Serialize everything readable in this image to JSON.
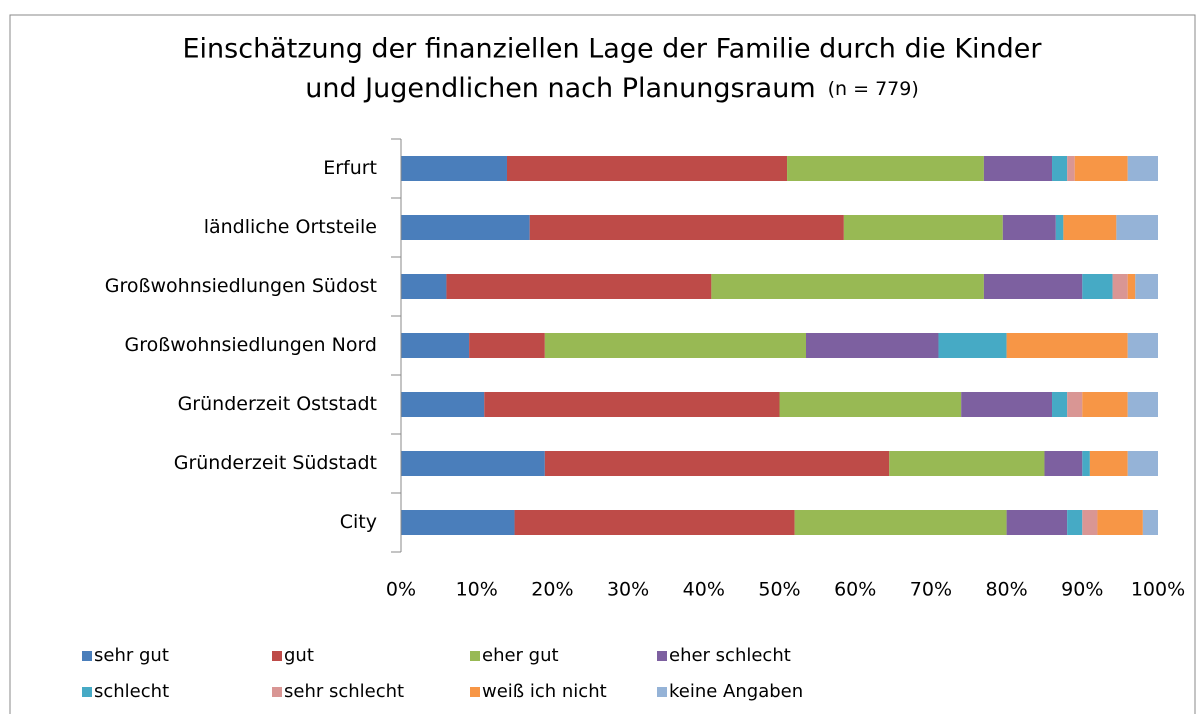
{
  "chart_data": {
    "type": "stacked_bar_horizontal",
    "title": [
      "Einschätzung der finanziellen Lage der Familie durch die Kinder",
      "und Jugendlichen nach Planungsraum"
    ],
    "subtitle": "(n = 779)",
    "categories": [
      "Erfurt",
      "ländliche Ortsteile",
      "Großwohnsiedlungen Südost",
      "Großwohnsiedlungen Nord",
      "Gründerzeit Oststadt",
      "Gründerzeit Südstadt",
      "City"
    ],
    "series": [
      {
        "name": "sehr gut",
        "color": "#4a7ebb",
        "values": [
          14,
          17,
          6,
          9,
          11,
          19,
          15
        ]
      },
      {
        "name": "gut",
        "color": "#be4b48",
        "values": [
          37,
          41.5,
          35,
          10,
          39,
          45.5,
          37
        ]
      },
      {
        "name": "eher gut",
        "color": "#98b954",
        "values": [
          26,
          21,
          36,
          34.5,
          24,
          20.5,
          28
        ]
      },
      {
        "name": "eher schlecht",
        "color": "#7d60a0",
        "values": [
          9,
          7,
          13,
          17.5,
          12,
          5,
          8
        ]
      },
      {
        "name": "schlecht",
        "color": "#46aac5",
        "values": [
          2,
          1,
          4,
          9,
          2,
          1,
          2
        ]
      },
      {
        "name": "sehr schlecht",
        "color": "#d99694",
        "values": [
          1,
          0,
          2,
          0,
          2,
          0,
          2
        ]
      },
      {
        "name": "weiß ich nicht",
        "color": "#f79646",
        "values": [
          7,
          7,
          1,
          16,
          6,
          5,
          6
        ]
      },
      {
        "name": "keine Angaben",
        "color": "#95b3d7",
        "values": [
          4,
          5.5,
          3,
          4,
          4,
          4,
          2
        ]
      }
    ],
    "xlim": [
      0,
      100
    ],
    "xticks": [
      {
        "value": 0,
        "label": "0%"
      },
      {
        "value": 10,
        "label": "10%"
      },
      {
        "value": 20,
        "label": "20%"
      },
      {
        "value": 30,
        "label": "30%"
      },
      {
        "value": 40,
        "label": "40%"
      },
      {
        "value": 50,
        "label": "50%"
      },
      {
        "value": 60,
        "label": "60%"
      },
      {
        "value": 70,
        "label": "70%"
      },
      {
        "value": 80,
        "label": "80%"
      },
      {
        "value": 90,
        "label": "90%"
      },
      {
        "value": 100,
        "label": "100%"
      }
    ],
    "grid": false,
    "legend": "bottom"
  }
}
